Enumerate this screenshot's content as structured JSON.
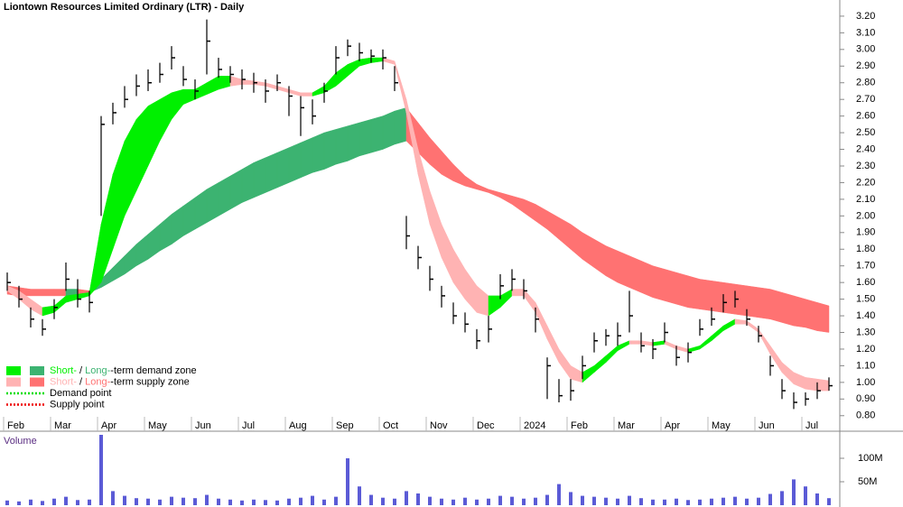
{
  "chart_data": {
    "type": "candlestick",
    "title": "Liontown Resources Limited Ordinary (LTR) - Daily",
    "categories": [
      "Feb",
      null,
      null,
      null,
      "Mar",
      null,
      null,
      null,
      "Apr",
      null,
      null,
      null,
      "May",
      null,
      null,
      null,
      "Jun",
      null,
      null,
      null,
      "Jul",
      null,
      null,
      null,
      "Aug",
      null,
      null,
      null,
      "Sep",
      null,
      null,
      null,
      "Oct",
      null,
      null,
      null,
      "Nov",
      null,
      null,
      null,
      "Dec",
      null,
      null,
      null,
      "2024",
      null,
      null,
      null,
      "Feb",
      null,
      null,
      null,
      "Mar",
      null,
      null,
      null,
      "Apr",
      null,
      null,
      null,
      "May",
      null,
      null,
      null,
      "Jun",
      null,
      null,
      null,
      "Jul",
      null,
      null
    ],
    "high": [
      1.66,
      1.58,
      1.45,
      1.38,
      1.5,
      1.72,
      1.62,
      1.55,
      2.6,
      2.68,
      2.78,
      2.85,
      2.88,
      2.92,
      3.02,
      2.9,
      2.82,
      3.18,
      2.95,
      2.9,
      2.88,
      2.86,
      2.82,
      2.85,
      2.78,
      2.72,
      2.7,
      2.8,
      3.02,
      3.06,
      3.04,
      3.0,
      3.0,
      2.9,
      2.0,
      1.82,
      1.7,
      1.58,
      1.48,
      1.42,
      1.32,
      1.4,
      1.65,
      1.68,
      1.62,
      1.45,
      1.15,
      1.02,
      1.02,
      1.16,
      1.3,
      1.32,
      1.36,
      1.55,
      1.3,
      1.26,
      1.36,
      1.22,
      1.24,
      1.38,
      1.45,
      1.53,
      1.55,
      1.44,
      1.34,
      1.16,
      1.02,
      0.94,
      0.94,
      1.0,
      1.03
    ],
    "low": [
      1.55,
      1.45,
      1.33,
      1.28,
      1.38,
      1.55,
      1.45,
      1.42,
      2.0,
      2.55,
      2.65,
      2.72,
      2.75,
      2.8,
      2.88,
      2.78,
      2.7,
      2.85,
      2.83,
      2.8,
      2.76,
      2.74,
      2.68,
      2.75,
      2.6,
      2.48,
      2.55,
      2.68,
      2.85,
      2.96,
      2.93,
      2.92,
      2.88,
      2.75,
      1.8,
      1.68,
      1.55,
      1.45,
      1.35,
      1.3,
      1.2,
      1.24,
      1.5,
      1.55,
      1.5,
      1.3,
      0.9,
      0.88,
      0.89,
      1.02,
      1.18,
      1.22,
      1.22,
      1.3,
      1.18,
      1.14,
      1.24,
      1.1,
      1.12,
      1.28,
      1.34,
      1.42,
      1.45,
      1.34,
      1.24,
      1.04,
      0.9,
      0.84,
      0.86,
      0.9,
      0.95
    ],
    "close": [
      1.6,
      1.5,
      1.38,
      1.32,
      1.45,
      1.62,
      1.5,
      1.48,
      2.55,
      2.62,
      2.7,
      2.78,
      2.8,
      2.85,
      2.95,
      2.82,
      2.75,
      3.05,
      2.88,
      2.85,
      2.82,
      2.8,
      2.75,
      2.8,
      2.72,
      2.65,
      2.6,
      2.75,
      2.95,
      3.02,
      2.98,
      2.96,
      2.95,
      2.8,
      1.88,
      1.75,
      1.62,
      1.52,
      1.4,
      1.35,
      1.25,
      1.32,
      1.58,
      1.62,
      1.55,
      1.38,
      1.1,
      0.92,
      0.95,
      1.1,
      1.25,
      1.28,
      1.28,
      1.4,
      1.22,
      1.2,
      1.3,
      1.15,
      1.18,
      1.32,
      1.38,
      1.48,
      1.5,
      1.38,
      1.28,
      1.1,
      0.95,
      0.88,
      0.9,
      0.95,
      0.98
    ],
    "short_zone_upper": [
      1.58,
      1.55,
      1.5,
      1.45,
      1.46,
      1.52,
      1.53,
      1.54,
      1.95,
      2.25,
      2.45,
      2.58,
      2.66,
      2.7,
      2.74,
      2.76,
      2.76,
      2.8,
      2.84,
      2.84,
      2.82,
      2.81,
      2.8,
      2.78,
      2.76,
      2.74,
      2.74,
      2.78,
      2.86,
      2.91,
      2.94,
      2.95,
      2.95,
      2.93,
      2.7,
      2.4,
      2.15,
      1.95,
      1.8,
      1.68,
      1.58,
      1.52,
      1.52,
      1.56,
      1.56,
      1.48,
      1.34,
      1.2,
      1.1,
      1.06,
      1.1,
      1.16,
      1.22,
      1.25,
      1.25,
      1.24,
      1.25,
      1.22,
      1.2,
      1.22,
      1.28,
      1.34,
      1.38,
      1.37,
      1.32,
      1.22,
      1.12,
      1.06,
      1.03,
      1.02,
      1.01
    ],
    "short_zone_lower": [
      1.55,
      1.5,
      1.44,
      1.4,
      1.42,
      1.48,
      1.5,
      1.52,
      1.6,
      1.8,
      2.0,
      2.15,
      2.3,
      2.45,
      2.58,
      2.67,
      2.7,
      2.73,
      2.76,
      2.78,
      2.79,
      2.79,
      2.78,
      2.76,
      2.74,
      2.72,
      2.72,
      2.74,
      2.78,
      2.84,
      2.9,
      2.92,
      2.93,
      2.91,
      2.62,
      2.25,
      1.95,
      1.75,
      1.6,
      1.5,
      1.42,
      1.4,
      1.45,
      1.52,
      1.52,
      1.42,
      1.26,
      1.12,
      1.02,
      1.0,
      1.06,
      1.12,
      1.19,
      1.23,
      1.23,
      1.22,
      1.23,
      1.2,
      1.18,
      1.2,
      1.25,
      1.31,
      1.35,
      1.35,
      1.3,
      1.17,
      1.06,
      0.99,
      0.96,
      0.95,
      0.95
    ],
    "long_zone_upper": [
      1.58,
      1.57,
      1.56,
      1.56,
      1.56,
      1.56,
      1.56,
      1.55,
      1.62,
      1.69,
      1.76,
      1.83,
      1.89,
      1.95,
      2.01,
      2.06,
      2.11,
      2.16,
      2.2,
      2.24,
      2.28,
      2.32,
      2.35,
      2.38,
      2.41,
      2.44,
      2.47,
      2.5,
      2.52,
      2.54,
      2.56,
      2.58,
      2.6,
      2.63,
      2.65,
      2.56,
      2.47,
      2.39,
      2.31,
      2.24,
      2.19,
      2.16,
      2.14,
      2.12,
      2.1,
      2.07,
      2.03,
      1.99,
      1.95,
      1.9,
      1.86,
      1.82,
      1.79,
      1.76,
      1.73,
      1.7,
      1.68,
      1.66,
      1.64,
      1.62,
      1.61,
      1.6,
      1.59,
      1.58,
      1.57,
      1.56,
      1.54,
      1.52,
      1.5,
      1.48,
      1.46
    ],
    "long_zone_lower": [
      1.53,
      1.52,
      1.52,
      1.52,
      1.52,
      1.52,
      1.53,
      1.54,
      1.57,
      1.61,
      1.65,
      1.7,
      1.74,
      1.79,
      1.83,
      1.88,
      1.92,
      1.96,
      2.0,
      2.04,
      2.08,
      2.11,
      2.14,
      2.17,
      2.2,
      2.23,
      2.26,
      2.28,
      2.31,
      2.33,
      2.36,
      2.38,
      2.4,
      2.43,
      2.45,
      2.38,
      2.31,
      2.25,
      2.21,
      2.18,
      2.16,
      2.14,
      2.11,
      2.07,
      2.02,
      1.97,
      1.92,
      1.86,
      1.8,
      1.74,
      1.69,
      1.64,
      1.6,
      1.57,
      1.54,
      1.51,
      1.49,
      1.47,
      1.45,
      1.44,
      1.43,
      1.42,
      1.41,
      1.4,
      1.39,
      1.38,
      1.36,
      1.34,
      1.33,
      1.31,
      1.3
    ],
    "colors": {
      "candle": "#000000",
      "short_demand": "#00f000",
      "long_demand": "#3cb371",
      "short_supply": "#ffb3b3",
      "long_supply": "#ff7272"
    },
    "ylim": [
      0.75,
      3.27
    ],
    "yticks": [
      {
        "value": 0.8,
        "label": "0.80"
      },
      {
        "value": 0.9,
        "label": "0.90"
      },
      {
        "value": 1.0,
        "label": "1.00"
      },
      {
        "value": 1.1,
        "label": "1.10"
      },
      {
        "value": 1.2,
        "label": "1.20"
      },
      {
        "value": 1.3,
        "label": "1.30"
      },
      {
        "value": 1.4,
        "label": "1.40"
      },
      {
        "value": 1.5,
        "label": "1.50"
      },
      {
        "value": 1.6,
        "label": "1.60"
      },
      {
        "value": 1.7,
        "label": "1.70"
      },
      {
        "value": 1.8,
        "label": "1.80"
      },
      {
        "value": 1.9,
        "label": "1.90"
      },
      {
        "value": 2.0,
        "label": "2.00"
      },
      {
        "value": 2.1,
        "label": "2.10"
      },
      {
        "value": 2.2,
        "label": "2.20"
      },
      {
        "value": 2.3,
        "label": "2.30"
      },
      {
        "value": 2.4,
        "label": "2.40"
      },
      {
        "value": 2.5,
        "label": "2.50"
      },
      {
        "value": 2.6,
        "label": "2.60"
      },
      {
        "value": 2.7,
        "label": "2.70"
      },
      {
        "value": 2.8,
        "label": "2.80"
      },
      {
        "value": 2.9,
        "label": "2.90"
      },
      {
        "value": 3.0,
        "label": "3.00"
      },
      {
        "value": 3.1,
        "label": "3.10"
      },
      {
        "value": 3.2,
        "label": "3.20"
      }
    ],
    "legend": [
      {
        "parts": [
          "Short-",
          " / ",
          "Long-",
          "-term demand zone"
        ],
        "colors": [
          "#00f000",
          "#3cb371"
        ]
      },
      {
        "parts": [
          "Short-",
          " / ",
          "Long-",
          "-term supply zone"
        ],
        "colors": [
          "#ffb3b3",
          "#ff7272"
        ]
      },
      {
        "label": "Demand point",
        "color": "#00dd00"
      },
      {
        "label": "Supply point",
        "color": "#ee0000"
      }
    ],
    "volume": {
      "label": "Volume",
      "color": "#5b5bd6",
      "values": [
        10,
        8,
        12,
        9,
        14,
        18,
        11,
        12,
        150,
        30,
        20,
        15,
        14,
        12,
        18,
        16,
        15,
        22,
        14,
        12,
        10,
        12,
        11,
        10,
        14,
        16,
        20,
        12,
        18,
        100,
        40,
        22,
        16,
        14,
        30,
        25,
        18,
        14,
        12,
        16,
        12,
        14,
        20,
        18,
        14,
        16,
        22,
        45,
        28,
        20,
        18,
        16,
        14,
        20,
        15,
        12,
        12,
        14,
        11,
        12,
        14,
        16,
        18,
        14,
        16,
        24,
        30,
        55,
        40,
        25,
        15
      ],
      "ylim": [
        0,
        150
      ],
      "yticks": [
        {
          "value": 50,
          "label": "50M"
        },
        {
          "value": 100,
          "label": "100M"
        }
      ]
    }
  }
}
